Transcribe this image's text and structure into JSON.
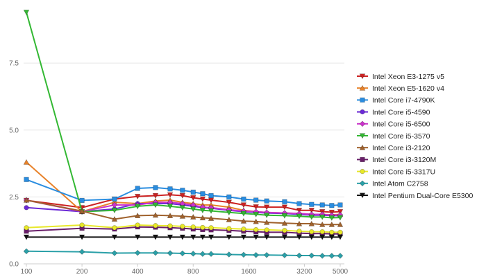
{
  "chart_data": {
    "type": "line",
    "title": "",
    "xlabel": "",
    "ylabel": "",
    "x_scale": "log",
    "x_tick_labels": [
      "100",
      "200",
      "400",
      "800",
      "1600",
      "3200",
      "5000"
    ],
    "y_tick_labels": [
      "0.0",
      "2.5",
      "5.0",
      "7.5"
    ],
    "ylim": [
      0,
      9.6
    ],
    "grid": "horizontal",
    "legend_position": "right",
    "x": [
      100,
      200,
      300,
      400,
      500,
      600,
      700,
      800,
      900,
      1000,
      1250,
      1500,
      1750,
      2000,
      2500,
      3000,
      3500,
      4000,
      4500,
      5000
    ],
    "series": [
      {
        "name": "Intel Xeon E3-1275 v5",
        "color": "#cc2222",
        "marker": "triangle-down",
        "values": [
          2.37,
          2.1,
          2.42,
          2.52,
          2.55,
          2.58,
          2.55,
          2.47,
          2.42,
          2.38,
          2.3,
          2.2,
          2.13,
          2.12,
          2.12,
          2.0,
          2.0,
          1.95,
          1.93,
          1.95
        ]
      },
      {
        "name": "Intel Xeon E5-1620 v4",
        "color": "#e8822a",
        "marker": "triangle-up",
        "values": [
          3.8,
          1.95,
          2.3,
          2.25,
          2.35,
          2.38,
          2.3,
          2.25,
          2.2,
          2.2,
          2.12,
          2.0,
          1.95,
          1.92,
          1.9,
          1.88,
          1.85,
          1.85,
          1.83,
          1.85
        ]
      },
      {
        "name": "Intel Core i7-4790K",
        "color": "#2a8de0",
        "marker": "square",
        "values": [
          3.15,
          2.37,
          2.42,
          2.82,
          2.85,
          2.8,
          2.75,
          2.68,
          2.62,
          2.55,
          2.5,
          2.42,
          2.38,
          2.35,
          2.32,
          2.25,
          2.22,
          2.2,
          2.18,
          2.2
        ]
      },
      {
        "name": "Intel Core i5-4590",
        "color": "#6b2ad6",
        "marker": "circle",
        "values": [
          2.1,
          1.95,
          2.05,
          2.25,
          2.25,
          2.25,
          2.2,
          2.15,
          2.1,
          2.08,
          2.0,
          1.95,
          1.92,
          1.9,
          1.88,
          1.85,
          1.82,
          1.82,
          1.8,
          1.8
        ]
      },
      {
        "name": "Intel Core i5-6500",
        "color": "#cc33cc",
        "marker": "diamond",
        "values": [
          2.38,
          1.95,
          2.2,
          2.2,
          2.3,
          2.3,
          2.25,
          2.2,
          2.12,
          2.1,
          2.02,
          1.97,
          1.95,
          1.92,
          1.9,
          1.88,
          1.85,
          1.85,
          1.82,
          1.83
        ]
      },
      {
        "name": "Intel Core i5-3570",
        "color": "#33b833",
        "marker": "triangle-down",
        "values": [
          9.4,
          1.95,
          2.0,
          2.15,
          2.2,
          2.15,
          2.1,
          2.05,
          2.0,
          1.98,
          1.92,
          1.88,
          1.85,
          1.82,
          1.8,
          1.78,
          1.75,
          1.75,
          1.72,
          1.73
        ]
      },
      {
        "name": "Intel Core i3-2120",
        "color": "#a0622d",
        "marker": "triangle-up",
        "values": [
          2.38,
          1.97,
          1.67,
          1.8,
          1.82,
          1.8,
          1.78,
          1.75,
          1.72,
          1.7,
          1.65,
          1.6,
          1.58,
          1.55,
          1.52,
          1.5,
          1.5,
          1.47,
          1.47,
          1.47
        ]
      },
      {
        "name": "Intel Core i3-3120M",
        "color": "#6a1f6a",
        "marker": "square",
        "values": [
          1.22,
          1.33,
          1.3,
          1.38,
          1.37,
          1.35,
          1.33,
          1.3,
          1.28,
          1.27,
          1.25,
          1.22,
          1.2,
          1.18,
          1.18,
          1.15,
          1.13,
          1.13,
          1.12,
          1.12
        ]
      },
      {
        "name": "Intel Core i5-3317U",
        "color": "#e8e82a",
        "marker": "circle",
        "values": [
          1.35,
          1.45,
          1.35,
          1.45,
          1.43,
          1.42,
          1.4,
          1.38,
          1.36,
          1.35,
          1.32,
          1.3,
          1.28,
          1.27,
          1.25,
          1.22,
          1.2,
          1.2,
          1.18,
          1.18
        ]
      },
      {
        "name": "Intel Atom C2758",
        "color": "#2aa0a8",
        "marker": "diamond",
        "values": [
          0.47,
          0.45,
          0.4,
          0.41,
          0.41,
          0.4,
          0.39,
          0.38,
          0.37,
          0.37,
          0.35,
          0.34,
          0.33,
          0.33,
          0.32,
          0.31,
          0.31,
          0.3,
          0.3,
          0.3
        ]
      },
      {
        "name": "Intel Pentium Dual-Core E5300",
        "color": "#111111",
        "marker": "triangle-down",
        "values": [
          1.0,
          1.0,
          1.0,
          1.0,
          1.0,
          1.0,
          1.0,
          1.0,
          1.0,
          1.0,
          1.0,
          1.0,
          1.0,
          1.0,
          1.0,
          1.0,
          1.0,
          1.0,
          1.0,
          1.0
        ]
      }
    ]
  }
}
